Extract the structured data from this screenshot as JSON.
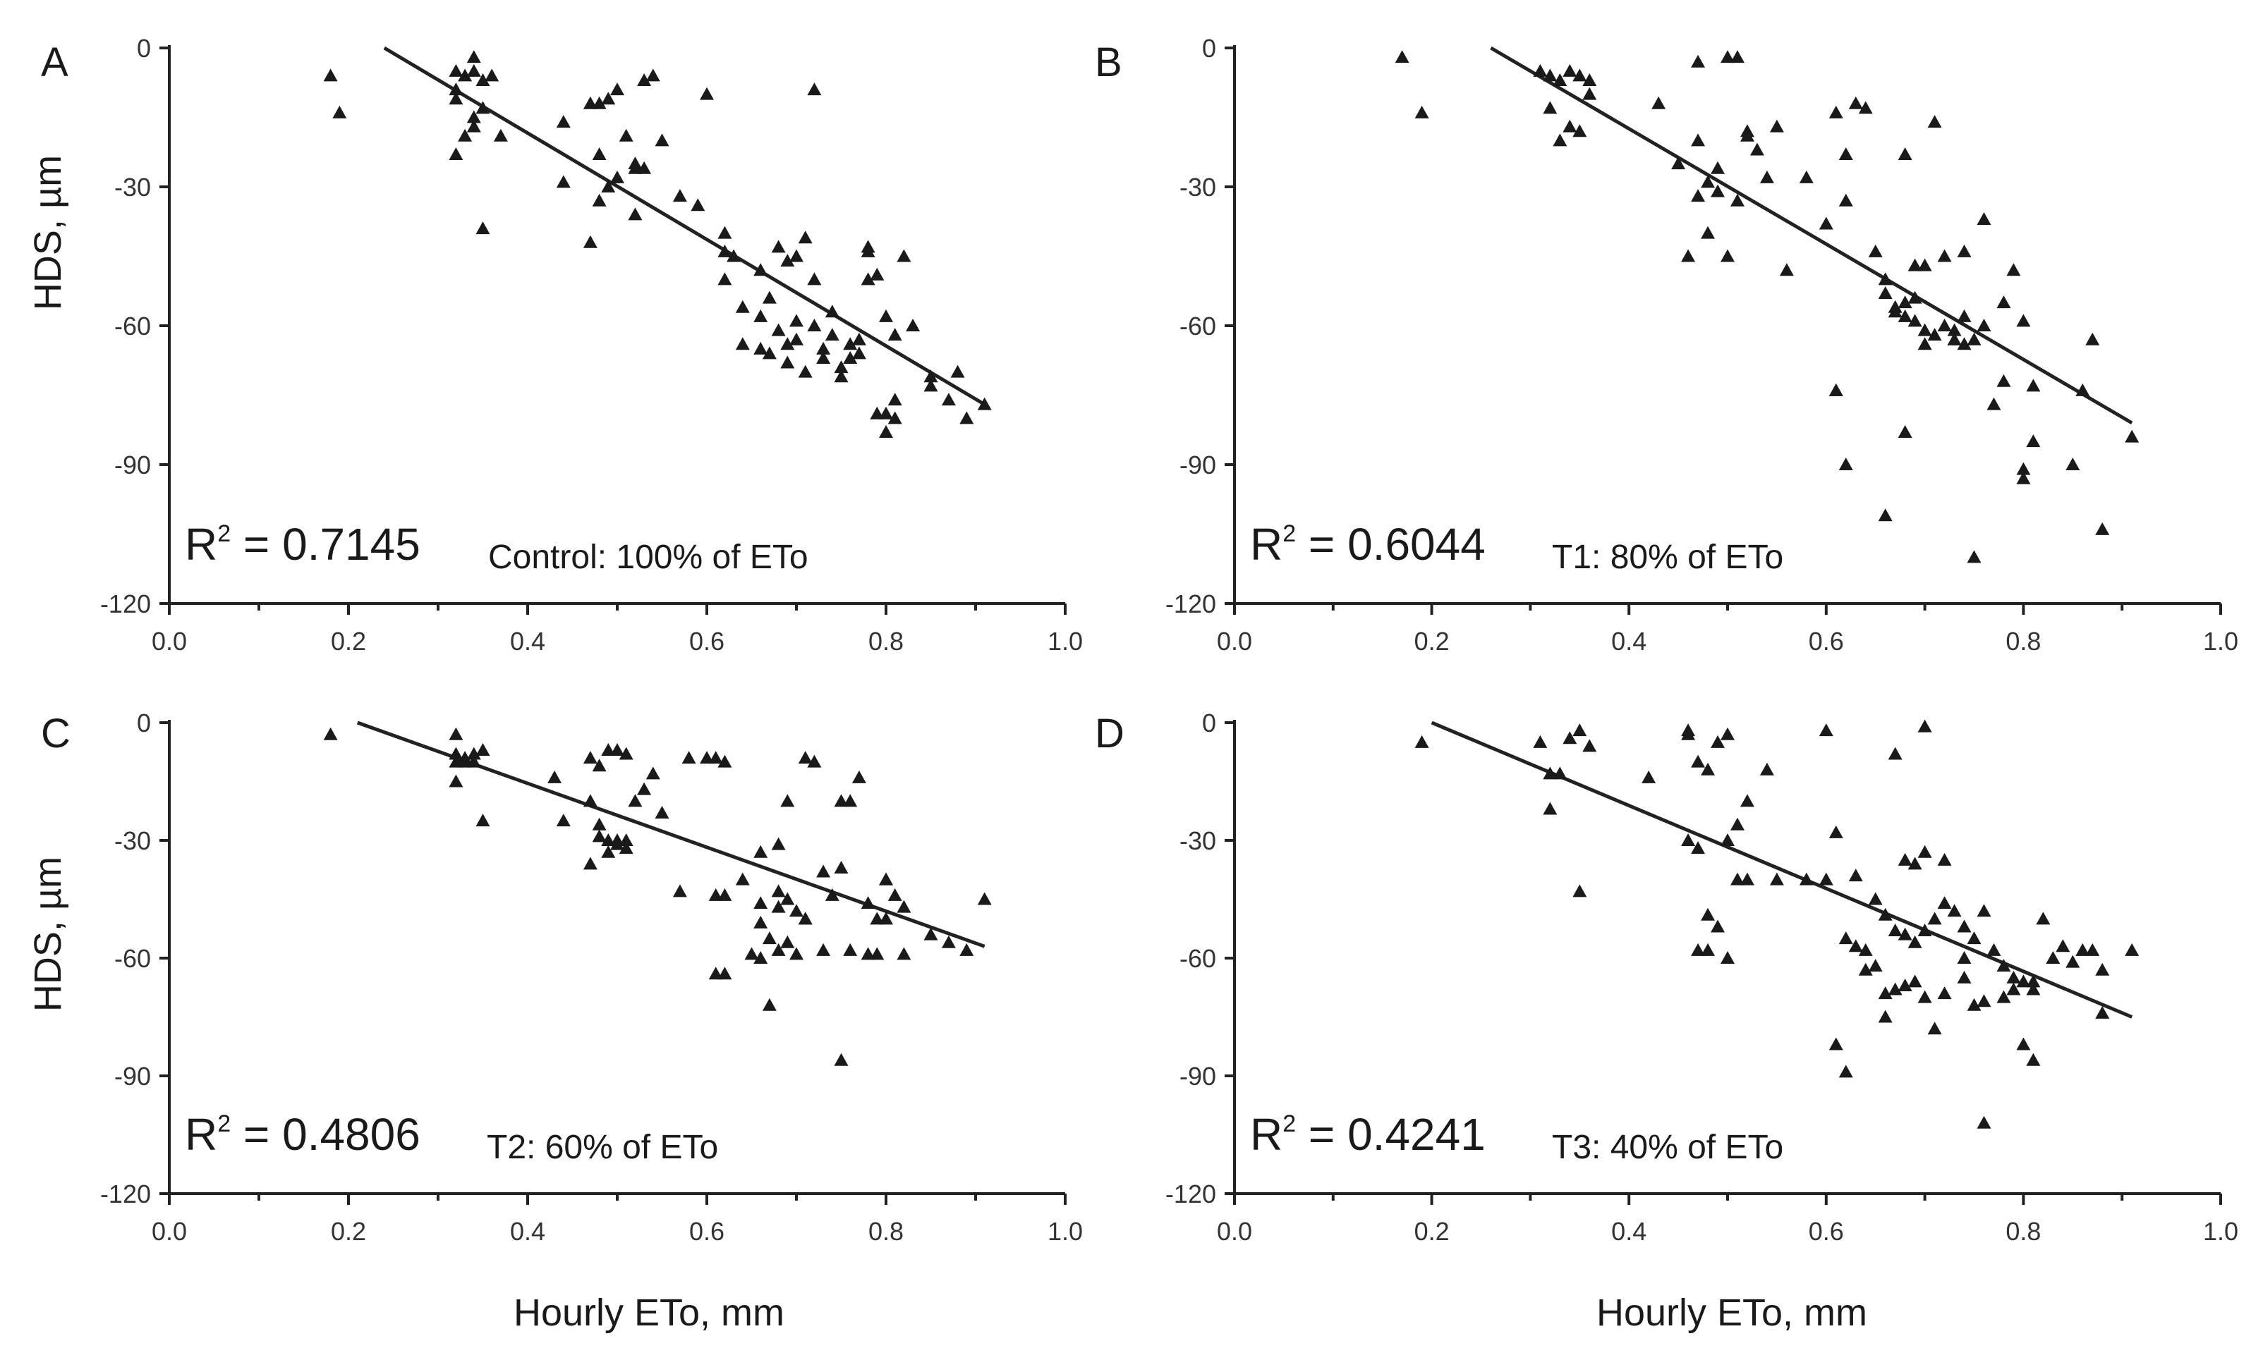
{
  "x_axis_title": "Hourly ETo, mm",
  "y_axis_title": "HDS, µm",
  "colors": {
    "marker": "#1a1a1a",
    "axis": "#222222",
    "text": "#1a1a1a",
    "background": "#ffffff"
  },
  "chart_data": [
    {
      "panel": "A",
      "type": "scatter",
      "r2_prefix": "R",
      "r2_sup": "2",
      "r2_value": "= 0.7145",
      "treatment": "Control: 100% of ETo",
      "xlabel": "",
      "ylabel": "HDS, µm",
      "xlim": [
        0,
        1.0
      ],
      "ylim": [
        -120,
        0
      ],
      "xticks": [
        "0.0",
        "0.2",
        "0.4",
        "0.6",
        "0.8",
        "1.0"
      ],
      "yticks": [
        "0",
        "-30",
        "-60",
        "-90",
        "-120"
      ],
      "trendline": {
        "x": [
          0.24,
          0.91
        ],
        "y": [
          0,
          -77
        ]
      },
      "x": [
        0.18,
        0.19,
        0.32,
        0.33,
        0.34,
        0.34,
        0.35,
        0.36,
        0.32,
        0.33,
        0.34,
        0.35,
        0.32,
        0.34,
        0.37,
        0.35,
        0.32,
        0.44,
        0.47,
        0.48,
        0.49,
        0.5,
        0.53,
        0.54,
        0.6,
        0.72,
        0.44,
        0.48,
        0.49,
        0.51,
        0.52,
        0.53,
        0.55,
        0.48,
        0.5,
        0.52,
        0.47,
        0.52,
        0.57,
        0.59,
        0.63,
        0.66,
        0.68,
        0.69,
        0.71,
        0.62,
        0.62,
        0.64,
        0.66,
        0.67,
        0.68,
        0.69,
        0.7,
        0.7,
        0.72,
        0.73,
        0.74,
        0.76,
        0.77,
        0.78,
        0.79,
        0.8,
        0.82,
        0.83,
        0.85,
        0.87,
        0.89,
        0.91,
        0.62,
        0.64,
        0.66,
        0.67,
        0.69,
        0.71,
        0.73,
        0.75,
        0.75,
        0.76,
        0.77,
        0.78,
        0.8,
        0.81,
        0.8,
        0.79,
        0.81,
        0.7,
        0.72,
        0.74,
        0.78,
        0.81,
        0.85,
        0.88
      ],
      "y": [
        -6,
        -14,
        -5,
        -6,
        -2,
        -5,
        -7,
        -6,
        -11,
        -19,
        -15,
        -13,
        -23,
        -17,
        -19,
        -39,
        -9,
        -16,
        -12,
        -12,
        -11,
        -9,
        -7,
        -6,
        -10,
        -9,
        -29,
        -23,
        -30,
        -19,
        -26,
        -26,
        -20,
        -33,
        -28,
        -25,
        -42,
        -36,
        -32,
        -34,
        -45,
        -48,
        -43,
        -46,
        -41,
        -40,
        -44,
        -56,
        -58,
        -54,
        -61,
        -64,
        -59,
        -63,
        -60,
        -65,
        -62,
        -67,
        -66,
        -43,
        -49,
        -58,
        -45,
        -60,
        -73,
        -76,
        -80,
        -77,
        -50,
        -64,
        -65,
        -66,
        -68,
        -70,
        -67,
        -69,
        -71,
        -64,
        -63,
        -44,
        -79,
        -80,
        -83,
        -79,
        -76,
        -45,
        -50,
        -57,
        -50,
        -62,
        -71,
        -70
      ]
    },
    {
      "panel": "B",
      "type": "scatter",
      "r2_prefix": "R",
      "r2_sup": "2",
      "r2_value": "= 0.6044",
      "treatment": "T1: 80% of ETo",
      "xlabel": "",
      "ylabel": "",
      "xlim": [
        0,
        1.0
      ],
      "ylim": [
        -120,
        0
      ],
      "xticks": [
        "0.0",
        "0.2",
        "0.4",
        "0.6",
        "0.8",
        "1.0"
      ],
      "yticks": [
        "0",
        "-30",
        "-60",
        "-90",
        "-120"
      ],
      "trendline": {
        "x": [
          0.26,
          0.91
        ],
        "y": [
          0,
          -81
        ]
      },
      "x": [
        0.17,
        0.19,
        0.31,
        0.32,
        0.33,
        0.34,
        0.35,
        0.36,
        0.32,
        0.34,
        0.35,
        0.33,
        0.36,
        0.43,
        0.45,
        0.47,
        0.48,
        0.49,
        0.5,
        0.51,
        0.52,
        0.53,
        0.55,
        0.47,
        0.49,
        0.51,
        0.52,
        0.54,
        0.56,
        0.46,
        0.48,
        0.5,
        0.47,
        0.58,
        0.6,
        0.61,
        0.62,
        0.62,
        0.64,
        0.65,
        0.66,
        0.67,
        0.68,
        0.69,
        0.7,
        0.7,
        0.72,
        0.73,
        0.74,
        0.75,
        0.76,
        0.77,
        0.78,
        0.79,
        0.8,
        0.81,
        0.66,
        0.67,
        0.68,
        0.69,
        0.7,
        0.71,
        0.72,
        0.73,
        0.74,
        0.61,
        0.62,
        0.66,
        0.68,
        0.69,
        0.75,
        0.78,
        0.8,
        0.8,
        0.81,
        0.85,
        0.86,
        0.87,
        0.88,
        0.91,
        0.74,
        0.76,
        0.68,
        0.71,
        0.63,
        0.61
      ],
      "y": [
        -2,
        -14,
        -5,
        -6,
        -7,
        -5,
        -6,
        -7,
        -13,
        -17,
        -18,
        -20,
        -10,
        -12,
        -25,
        -20,
        -29,
        -26,
        -2,
        -2,
        -18,
        -22,
        -17,
        -32,
        -31,
        -33,
        -19,
        -28,
        -48,
        -45,
        -40,
        -45,
        -3,
        -28,
        -38,
        -14,
        -23,
        -33,
        -13,
        -44,
        -50,
        -56,
        -58,
        -54,
        -61,
        -47,
        -45,
        -61,
        -58,
        -63,
        -60,
        -77,
        -55,
        -48,
        -59,
        -73,
        -53,
        -57,
        -55,
        -59,
        -64,
        -62,
        -60,
        -63,
        -64,
        -74,
        -90,
        -101,
        -83,
        -47,
        -110,
        -72,
        -91,
        -93,
        -85,
        -90,
        -74,
        -63,
        -104,
        -84,
        -44,
        -37,
        -23,
        -16,
        -12,
        -74
      ],
      "note_extra_x": [
        0.73
      ],
      "note_extra_y": [
        -63
      ]
    },
    {
      "panel": "C",
      "type": "scatter",
      "r2_prefix": "R",
      "r2_sup": "2",
      "r2_value": "= 0.4806",
      "treatment": "T2: 60% of ETo",
      "xlabel": "Hourly ETo, mm",
      "ylabel": "HDS, µm",
      "xlim": [
        0,
        1.0
      ],
      "ylim": [
        -120,
        0
      ],
      "xticks": [
        "0.0",
        "0.2",
        "0.4",
        "0.6",
        "0.8",
        "1.0"
      ],
      "yticks": [
        "0",
        "-30",
        "-60",
        "-90",
        "-120"
      ],
      "trendline": {
        "x": [
          0.21,
          0.91
        ],
        "y": [
          0,
          -57
        ]
      },
      "x": [
        0.18,
        0.32,
        0.32,
        0.33,
        0.34,
        0.35,
        0.32,
        0.33,
        0.34,
        0.32,
        0.35,
        0.43,
        0.47,
        0.48,
        0.49,
        0.5,
        0.51,
        0.52,
        0.53,
        0.54,
        0.44,
        0.47,
        0.48,
        0.48,
        0.49,
        0.5,
        0.51,
        0.55,
        0.47,
        0.49,
        0.5,
        0.51,
        0.58,
        0.6,
        0.61,
        0.62,
        0.57,
        0.61,
        0.62,
        0.61,
        0.62,
        0.64,
        0.66,
        0.66,
        0.68,
        0.69,
        0.7,
        0.71,
        0.72,
        0.65,
        0.67,
        0.68,
        0.69,
        0.7,
        0.66,
        0.68,
        0.71,
        0.73,
        0.74,
        0.75,
        0.76,
        0.77,
        0.73,
        0.75,
        0.76,
        0.78,
        0.79,
        0.8,
        0.81,
        0.8,
        0.82,
        0.85,
        0.87,
        0.89,
        0.91,
        0.79,
        0.8,
        0.82,
        0.78,
        0.67,
        0.75,
        0.71,
        0.66,
        0.69,
        0.68
      ],
      "y": [
        -3,
        -3,
        -8,
        -10,
        -8,
        -7,
        -15,
        -9,
        -10,
        -10,
        -25,
        -14,
        -9,
        -11,
        -7,
        -7,
        -8,
        -20,
        -17,
        -13,
        -25,
        -20,
        -26,
        -29,
        -30,
        -31,
        -30,
        -23,
        -36,
        -33,
        -30,
        -32,
        -9,
        -9,
        -9,
        -10,
        -43,
        -44,
        -44,
        -64,
        -64,
        -40,
        -33,
        -46,
        -43,
        -45,
        -48,
        -50,
        -10,
        -59,
        -55,
        -58,
        -56,
        -59,
        -51,
        -47,
        -50,
        -58,
        -44,
        -20,
        -20,
        -14,
        -38,
        -37,
        -58,
        -46,
        -59,
        -40,
        -44,
        -40,
        -47,
        -54,
        -56,
        -58,
        -45,
        -50,
        -50,
        -59,
        -59,
        -72,
        -86,
        -9,
        -60,
        -20,
        -31
      ],
      "note_extra_x": [],
      "note_extra_y": []
    },
    {
      "panel": "D",
      "type": "scatter",
      "r2_prefix": "R",
      "r2_sup": "2",
      "r2_value": "= 0.4241",
      "treatment": "T3: 40% of ETo",
      "xlabel": "Hourly ETo, mm",
      "ylabel": "",
      "xlim": [
        0,
        1.0
      ],
      "ylim": [
        -120,
        0
      ],
      "xticks": [
        "0.0",
        "0.2",
        "0.4",
        "0.6",
        "0.8",
        "1.0"
      ],
      "yticks": [
        "0",
        "-30",
        "-60",
        "-90",
        "-120"
      ],
      "trendline": {
        "x": [
          0.2,
          0.91
        ],
        "y": [
          0,
          -75
        ]
      },
      "x": [
        0.19,
        0.31,
        0.32,
        0.33,
        0.34,
        0.35,
        0.36,
        0.32,
        0.35,
        0.42,
        0.46,
        0.46,
        0.47,
        0.48,
        0.49,
        0.5,
        0.51,
        0.52,
        0.54,
        0.46,
        0.47,
        0.48,
        0.49,
        0.5,
        0.51,
        0.52,
        0.55,
        0.47,
        0.48,
        0.5,
        0.6,
        0.6,
        0.62,
        0.63,
        0.64,
        0.65,
        0.66,
        0.67,
        0.68,
        0.69,
        0.7,
        0.71,
        0.72,
        0.73,
        0.74,
        0.75,
        0.76,
        0.77,
        0.78,
        0.79,
        0.8,
        0.81,
        0.82,
        0.83,
        0.85,
        0.87,
        0.88,
        0.91,
        0.61,
        0.62,
        0.64,
        0.65,
        0.66,
        0.67,
        0.68,
        0.69,
        0.7,
        0.71,
        0.72,
        0.74,
        0.76,
        0.78,
        0.8,
        0.81,
        0.75,
        0.76,
        0.79,
        0.81,
        0.84,
        0.86,
        0.88,
        0.66,
        0.68,
        0.69,
        0.7,
        0.72,
        0.74,
        0.63,
        0.7,
        0.67,
        0.61,
        0.58
      ],
      "y": [
        -5,
        -5,
        -22,
        -13,
        -4,
        -2,
        -6,
        -13,
        -43,
        -14,
        -2,
        -3,
        -10,
        -12,
        -5,
        -3,
        -26,
        -20,
        -12,
        -30,
        -32,
        -49,
        -52,
        -30,
        -40,
        -40,
        -40,
        -58,
        -58,
        -60,
        -2,
        -40,
        -55,
        -57,
        -58,
        -45,
        -49,
        -53,
        -54,
        -56,
        -53,
        -50,
        -46,
        -48,
        -52,
        -55,
        -48,
        -58,
        -62,
        -68,
        -66,
        -68,
        -50,
        -60,
        -61,
        -58,
        -74,
        -58,
        -82,
        -89,
        -63,
        -62,
        -69,
        -68,
        -67,
        -66,
        -70,
        -78,
        -69,
        -65,
        -102,
        -70,
        -82,
        -86,
        -72,
        -71,
        -65,
        -66,
        -57,
        -58,
        -63,
        -75,
        -35,
        -36,
        -33,
        -35,
        -60,
        -39,
        -1,
        -8,
        -28,
        -40
      ],
      "note_extra_x": [],
      "note_extra_y": []
    }
  ]
}
